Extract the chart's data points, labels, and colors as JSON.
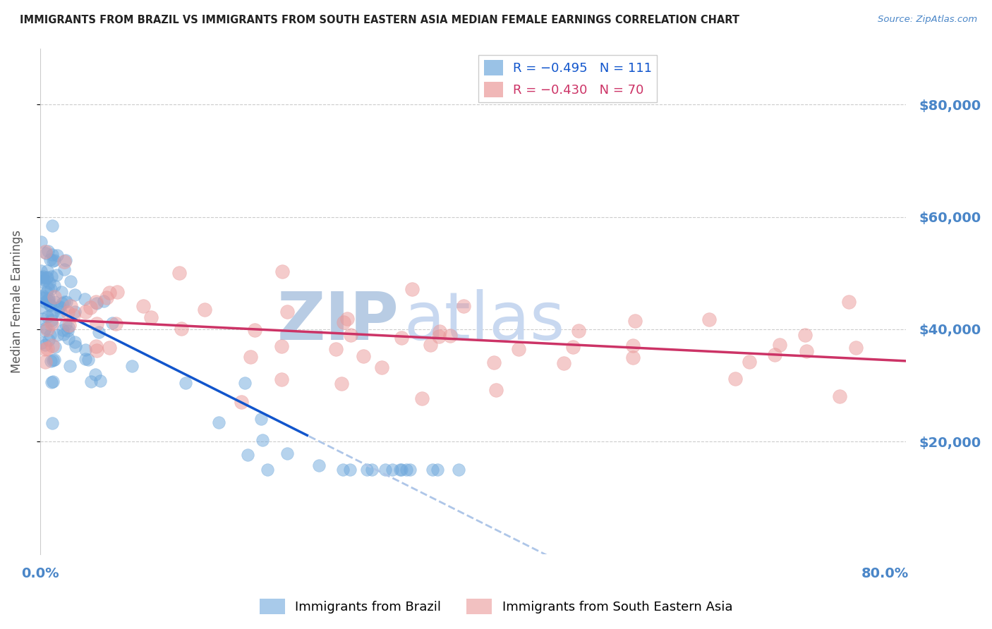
{
  "title": "IMMIGRANTS FROM BRAZIL VS IMMIGRANTS FROM SOUTH EASTERN ASIA MEDIAN FEMALE EARNINGS CORRELATION CHART",
  "source": "Source: ZipAtlas.com",
  "ylabel": "Median Female Earnings",
  "ytick_values": [
    20000,
    40000,
    60000,
    80000
  ],
  "ylim": [
    0,
    90000
  ],
  "xlim": [
    0.0,
    0.82
  ],
  "legend_brazil_R": "R = −0.495",
  "legend_brazil_N": "N = 111",
  "legend_sea_R": "R = −0.430",
  "legend_sea_N": "N = 70",
  "brazil_color": "#6fa8dc",
  "sea_color": "#ea9999",
  "brazil_line_color": "#1155cc",
  "sea_line_color": "#cc3366",
  "dashed_line_color": "#aec6e8",
  "watermark_zip": "ZIP",
  "watermark_atlas": "atlas",
  "watermark_zip_color": "#b8cce4",
  "watermark_atlas_color": "#c8d8f0",
  "background_color": "#ffffff",
  "grid_color": "#cccccc",
  "title_color": "#222222",
  "ytick_color": "#4a86c8",
  "xtick_color": "#4a86c8",
  "brazil_label": "Immigrants from Brazil",
  "sea_label": "Immigrants from South Eastern Asia",
  "brazil_intercept": 46000,
  "brazil_slope": -130000,
  "sea_intercept": 44000,
  "sea_slope": -14000
}
